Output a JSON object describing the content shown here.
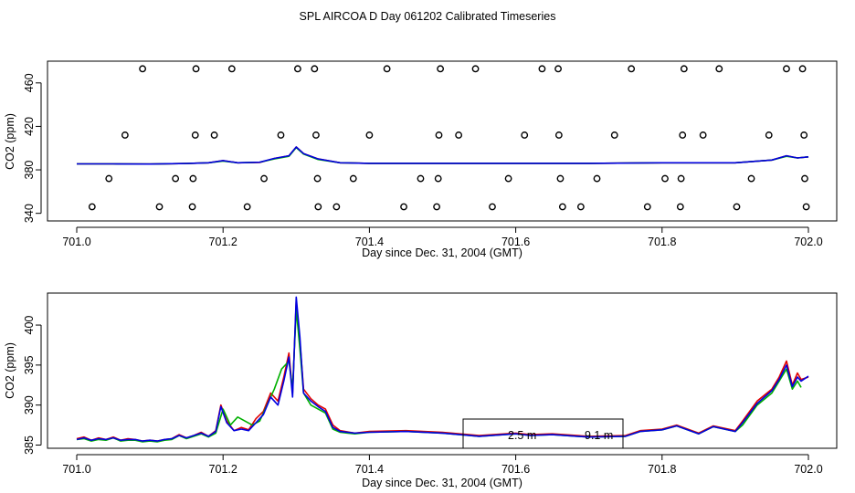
{
  "title": "SPL AIRCOA D  Day 061202  Calibrated Timeseries",
  "colors": {
    "red": "#e00000",
    "green": "#00b000",
    "blue": "#0000e0",
    "axis": "#000000"
  },
  "chart_data": [
    {
      "type": "scatter",
      "xlabel": "Day since Dec. 31, 2004 (GMT)",
      "ylabel": "CO2 (ppm)",
      "xlim": [
        701.0,
        702.0
      ],
      "ylim": [
        340,
        480
      ],
      "x_ticks": [
        "701.0",
        "701.2",
        "701.4",
        "701.6",
        "701.8",
        "702.0"
      ],
      "x_tick_values": [
        701.0,
        701.2,
        701.4,
        701.6,
        701.8,
        702.0
      ],
      "y_ticks": [
        "340",
        "380",
        "420",
        "460"
      ],
      "y_tick_values": [
        340,
        380,
        420,
        460
      ],
      "calibration_points": [
        {
          "x": 701.09,
          "y": 473
        },
        {
          "x": 701.163,
          "y": 473
        },
        {
          "x": 701.212,
          "y": 473
        },
        {
          "x": 701.302,
          "y": 473
        },
        {
          "x": 701.325,
          "y": 473
        },
        {
          "x": 701.424,
          "y": 473
        },
        {
          "x": 701.497,
          "y": 473
        },
        {
          "x": 701.545,
          "y": 473
        },
        {
          "x": 701.636,
          "y": 473
        },
        {
          "x": 701.658,
          "y": 473
        },
        {
          "x": 701.758,
          "y": 473
        },
        {
          "x": 701.83,
          "y": 473
        },
        {
          "x": 701.878,
          "y": 473
        },
        {
          "x": 701.97,
          "y": 473
        },
        {
          "x": 701.992,
          "y": 473
        },
        {
          "x": 701.066,
          "y": 412
        },
        {
          "x": 701.162,
          "y": 412
        },
        {
          "x": 701.188,
          "y": 412
        },
        {
          "x": 701.279,
          "y": 412
        },
        {
          "x": 701.327,
          "y": 412
        },
        {
          "x": 701.4,
          "y": 412
        },
        {
          "x": 701.495,
          "y": 412
        },
        {
          "x": 701.522,
          "y": 412
        },
        {
          "x": 701.612,
          "y": 412
        },
        {
          "x": 701.659,
          "y": 412
        },
        {
          "x": 701.735,
          "y": 412
        },
        {
          "x": 701.828,
          "y": 412
        },
        {
          "x": 701.856,
          "y": 412
        },
        {
          "x": 701.946,
          "y": 412
        },
        {
          "x": 701.994,
          "y": 412
        },
        {
          "x": 701.044,
          "y": 372
        },
        {
          "x": 701.135,
          "y": 372
        },
        {
          "x": 701.159,
          "y": 372
        },
        {
          "x": 701.256,
          "y": 372
        },
        {
          "x": 701.329,
          "y": 372
        },
        {
          "x": 701.378,
          "y": 372
        },
        {
          "x": 701.47,
          "y": 372
        },
        {
          "x": 701.494,
          "y": 372
        },
        {
          "x": 701.59,
          "y": 372
        },
        {
          "x": 701.661,
          "y": 372
        },
        {
          "x": 701.711,
          "y": 372
        },
        {
          "x": 701.804,
          "y": 372
        },
        {
          "x": 701.826,
          "y": 372
        },
        {
          "x": 701.922,
          "y": 372
        },
        {
          "x": 701.995,
          "y": 372
        },
        {
          "x": 701.021,
          "y": 346
        },
        {
          "x": 701.113,
          "y": 346
        },
        {
          "x": 701.158,
          "y": 346
        },
        {
          "x": 701.233,
          "y": 346
        },
        {
          "x": 701.33,
          "y": 346
        },
        {
          "x": 701.355,
          "y": 346
        },
        {
          "x": 701.447,
          "y": 346
        },
        {
          "x": 701.492,
          "y": 346
        },
        {
          "x": 701.568,
          "y": 346
        },
        {
          "x": 701.664,
          "y": 346
        },
        {
          "x": 701.689,
          "y": 346
        },
        {
          "x": 701.78,
          "y": 346
        },
        {
          "x": 701.825,
          "y": 346
        },
        {
          "x": 701.902,
          "y": 346
        },
        {
          "x": 701.997,
          "y": 346
        }
      ],
      "series": [
        {
          "color": "red",
          "x": [
            701.0,
            701.05,
            701.1,
            701.15,
            701.18,
            701.2,
            701.22,
            701.25,
            701.27,
            701.29,
            701.3,
            701.31,
            701.33,
            701.36,
            701.4,
            701.5,
            701.6,
            701.7,
            701.8,
            701.9,
            701.95,
            701.97,
            701.985,
            702.0
          ],
          "y": [
            385.5,
            385.5,
            385.3,
            385.8,
            386.5,
            388.5,
            386.5,
            386.8,
            390.5,
            393,
            401,
            395,
            390,
            386.5,
            386,
            386,
            386,
            386,
            386.5,
            386.5,
            389,
            393,
            391,
            392
          ]
        },
        {
          "color": "green",
          "x": [
            701.0,
            701.05,
            701.1,
            701.15,
            701.18,
            701.2,
            701.22,
            701.25,
            701.27,
            701.29,
            701.3,
            701.31,
            701.33,
            701.36,
            701.4,
            701.5,
            701.6,
            701.7,
            701.8,
            701.9,
            701.95,
            701.97,
            701.985,
            702.0
          ],
          "y": [
            385.5,
            385.5,
            385.3,
            385.8,
            386.5,
            388,
            386.5,
            387,
            390,
            392.5,
            400.5,
            394.5,
            389.5,
            386.5,
            386,
            386,
            386,
            386,
            386.5,
            386.5,
            389,
            392.5,
            391,
            392
          ]
        },
        {
          "color": "blue",
          "x": [
            701.0,
            701.05,
            701.1,
            701.15,
            701.18,
            701.2,
            701.22,
            701.25,
            701.27,
            701.29,
            701.3,
            701.31,
            701.33,
            701.36,
            701.4,
            701.5,
            701.6,
            701.7,
            701.8,
            701.9,
            701.95,
            701.97,
            701.985,
            702.0
          ],
          "y": [
            385.5,
            385.5,
            385.3,
            385.8,
            386.5,
            388.5,
            386.5,
            387,
            390.5,
            393,
            401,
            395,
            390,
            386.5,
            386,
            386,
            386,
            386,
            386.5,
            386.5,
            389,
            393,
            391,
            392
          ]
        }
      ]
    },
    {
      "type": "line",
      "xlabel": "Day since Dec. 31, 2004 (GMT)",
      "ylabel": "CO2 (ppm)",
      "xlim": [
        701.0,
        702.0
      ],
      "ylim": [
        385,
        403.5
      ],
      "x_ticks": [
        "701.0",
        "701.2",
        "701.4",
        "701.6",
        "701.8",
        "702.0"
      ],
      "x_tick_values": [
        701.0,
        701.2,
        701.4,
        701.6,
        701.8,
        702.0
      ],
      "y_ticks": [
        "385",
        "390",
        "395",
        "400"
      ],
      "y_tick_values": [
        385,
        390,
        395,
        400
      ],
      "legend_box_labels": [
        "2.5 m",
        "9.1 m"
      ],
      "series": [
        {
          "color": "red",
          "x": [
            701.0,
            701.01,
            701.02,
            701.03,
            701.04,
            701.05,
            701.06,
            701.07,
            701.08,
            701.09,
            701.1,
            701.11,
            701.12,
            701.13,
            701.14,
            701.15,
            701.16,
            701.17,
            701.18,
            701.19,
            701.197,
            701.205,
            701.215,
            701.225,
            701.235,
            701.245,
            701.255,
            701.265,
            701.275,
            701.283,
            701.29,
            701.295,
            701.3,
            701.305,
            701.31,
            701.32,
            701.33,
            701.34,
            701.35,
            701.36,
            701.38,
            701.4,
            701.45,
            701.5,
            701.55,
            701.6,
            701.62,
            701.65,
            701.7,
            701.75,
            701.77,
            701.8,
            701.82,
            701.85,
            701.87,
            701.9,
            701.91,
            701.93,
            701.95,
            701.96,
            701.97,
            701.978,
            701.985,
            701.99,
            702.0
          ],
          "y": [
            385.8,
            386.0,
            385.6,
            385.9,
            385.7,
            386.0,
            385.6,
            385.8,
            385.7,
            385.5,
            385.6,
            385.5,
            385.7,
            385.8,
            386.3,
            385.9,
            386.2,
            386.6,
            386.1,
            386.8,
            390.0,
            388.0,
            386.8,
            387.2,
            386.9,
            388.3,
            389.2,
            391.5,
            390.5,
            393.5,
            396.5,
            391.5,
            403.0,
            398.0,
            392.0,
            390.8,
            390.0,
            389.5,
            387.5,
            386.8,
            386.5,
            386.7,
            386.8,
            386.6,
            386.2,
            386.5,
            386.3,
            386.4,
            386.1,
            386.2,
            386.8,
            387.0,
            387.5,
            386.5,
            387.4,
            386.8,
            388.0,
            390.5,
            392.0,
            393.5,
            395.5,
            392.5,
            394.0,
            393.2,
            393.5
          ]
        },
        {
          "color": "green",
          "x": [
            701.0,
            701.01,
            701.02,
            701.03,
            701.04,
            701.05,
            701.06,
            701.07,
            701.08,
            701.09,
            701.1,
            701.11,
            701.12,
            701.13,
            701.14,
            701.15,
            701.16,
            701.17,
            701.18,
            701.19,
            701.2,
            701.21,
            701.22,
            701.23,
            701.24,
            701.25,
            701.26,
            701.27,
            701.28,
            701.29,
            701.295,
            701.3,
            701.305,
            701.31,
            701.32,
            701.33,
            701.34,
            701.35,
            701.36,
            701.38,
            701.4,
            701.45,
            701.5,
            701.55,
            701.6,
            701.62,
            701.65,
            701.7,
            701.75,
            701.77,
            701.8,
            701.82,
            701.85,
            701.87,
            701.9,
            701.91,
            701.93,
            701.95,
            701.96,
            701.97,
            701.978,
            701.985,
            701.99
          ],
          "y": [
            385.7,
            385.8,
            385.5,
            385.7,
            385.6,
            385.9,
            385.5,
            385.6,
            385.6,
            385.4,
            385.5,
            385.4,
            385.6,
            385.7,
            386.2,
            385.8,
            386.1,
            386.4,
            386.0,
            386.5,
            389.5,
            387.5,
            388.5,
            388.0,
            387.5,
            388.0,
            390.0,
            392.0,
            394.5,
            395.5,
            392.0,
            402.0,
            397.0,
            391.5,
            390.0,
            389.5,
            389.0,
            387.0,
            386.6,
            386.4,
            386.6,
            386.7,
            386.5,
            386.1,
            386.4,
            386.2,
            386.3,
            386.0,
            386.1,
            386.7,
            386.9,
            387.4,
            386.4,
            387.3,
            386.7,
            387.5,
            390.0,
            391.5,
            393.0,
            394.5,
            392.0,
            393.0,
            392.2
          ]
        },
        {
          "color": "blue",
          "x": [
            701.0,
            701.01,
            701.02,
            701.03,
            701.04,
            701.05,
            701.06,
            701.07,
            701.08,
            701.09,
            701.1,
            701.11,
            701.12,
            701.13,
            701.14,
            701.15,
            701.16,
            701.17,
            701.18,
            701.19,
            701.197,
            701.205,
            701.215,
            701.225,
            701.235,
            701.245,
            701.255,
            701.265,
            701.275,
            701.283,
            701.29,
            701.295,
            701.3,
            701.305,
            701.31,
            701.32,
            701.33,
            701.34,
            701.35,
            701.36,
            701.38,
            701.4,
            701.45,
            701.5,
            701.55,
            701.6,
            701.62,
            701.65,
            701.7,
            701.75,
            701.77,
            701.8,
            701.82,
            701.85,
            701.87,
            701.9,
            701.91,
            701.93,
            701.95,
            701.96,
            701.97,
            701.978,
            701.985,
            701.99,
            702.0
          ],
          "y": [
            385.7,
            385.9,
            385.6,
            385.8,
            385.7,
            385.9,
            385.6,
            385.7,
            385.7,
            385.5,
            385.6,
            385.5,
            385.7,
            385.8,
            386.2,
            385.9,
            386.2,
            386.5,
            386.1,
            386.7,
            389.8,
            387.8,
            386.8,
            387.0,
            386.8,
            387.8,
            388.8,
            391.0,
            390.0,
            393.0,
            396.0,
            391.0,
            403.5,
            398.5,
            391.5,
            390.5,
            389.8,
            389.2,
            387.2,
            386.7,
            386.5,
            386.6,
            386.7,
            386.5,
            386.1,
            386.4,
            386.2,
            386.3,
            386.0,
            386.1,
            386.7,
            386.9,
            387.4,
            386.4,
            387.3,
            386.7,
            387.8,
            390.2,
            391.8,
            393.2,
            395.0,
            392.3,
            393.5,
            393.0,
            393.6
          ]
        }
      ]
    }
  ]
}
